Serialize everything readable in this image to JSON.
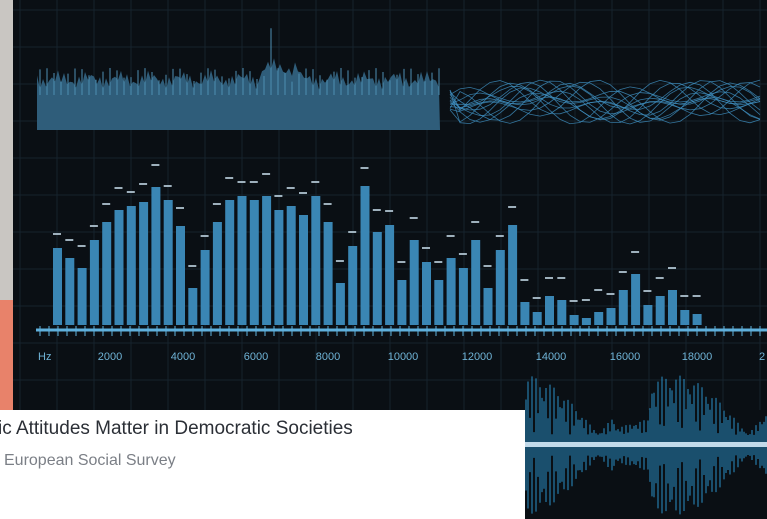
{
  "axis": {
    "unit": "Hz",
    "ticks": [
      "2000",
      "4000",
      "6000",
      "8000",
      "10000",
      "12000",
      "14000",
      "16000",
      "18000",
      "2"
    ]
  },
  "caption": {
    "title": "ic Attitudes Matter in Democratic Societies",
    "subtitle": "European Social Survey"
  }
}
